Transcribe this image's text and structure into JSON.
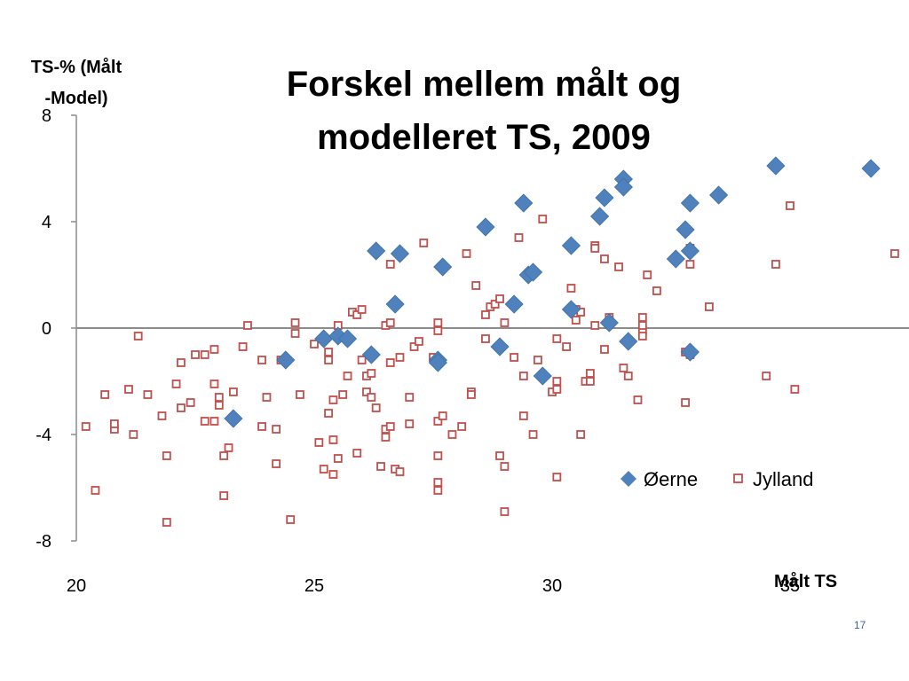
{
  "slide": {
    "page_number": "17"
  },
  "chart_data": {
    "type": "scatter",
    "title_lines": [
      "Forskel mellem målt og",
      "modelleret TS, 2009"
    ],
    "ylabel_lines": [
      "TS-% (Målt",
      "-Model)"
    ],
    "xlabel": "Målt TS",
    "xlim": [
      20,
      37.5
    ],
    "ylim": [
      -8,
      8
    ],
    "x_ticks": [
      20,
      25,
      30,
      35
    ],
    "y_ticks": [
      8,
      4,
      0,
      -4,
      -8
    ],
    "grid": false,
    "legend_position": "right",
    "series": [
      {
        "name": "Øerne",
        "color": "#4f81bd",
        "marker": "diamond",
        "points": [
          [
            23.3,
            -3.4
          ],
          [
            24.4,
            -1.2
          ],
          [
            25.2,
            -0.4
          ],
          [
            25.5,
            -0.3
          ],
          [
            25.7,
            -0.4
          ],
          [
            26.2,
            -1.0
          ],
          [
            26.3,
            2.9
          ],
          [
            26.7,
            0.9
          ],
          [
            26.8,
            2.8
          ],
          [
            27.6,
            -1.2
          ],
          [
            27.6,
            -1.3
          ],
          [
            27.7,
            2.3
          ],
          [
            28.6,
            3.8
          ],
          [
            28.9,
            -0.7
          ],
          [
            29.2,
            0.9
          ],
          [
            29.4,
            4.7
          ],
          [
            29.5,
            2.0
          ],
          [
            29.6,
            2.1
          ],
          [
            29.8,
            -1.8
          ],
          [
            30.4,
            3.1
          ],
          [
            30.4,
            0.7
          ],
          [
            31.0,
            4.2
          ],
          [
            31.1,
            4.9
          ],
          [
            31.2,
            0.2
          ],
          [
            31.5,
            5.6
          ],
          [
            31.5,
            5.3
          ],
          [
            31.6,
            -0.5
          ],
          [
            32.6,
            2.6
          ],
          [
            32.8,
            3.7
          ],
          [
            32.9,
            4.7
          ],
          [
            32.9,
            2.9
          ],
          [
            32.9,
            -0.9
          ],
          [
            33.5,
            5.0
          ],
          [
            34.7,
            6.1
          ],
          [
            36.7,
            6.0
          ]
        ]
      },
      {
        "name": "Jylland",
        "color": "#c0504d",
        "marker": "open-square",
        "points": [
          [
            20.2,
            -3.7
          ],
          [
            20.4,
            -6.1
          ],
          [
            20.6,
            -2.5
          ],
          [
            20.8,
            -3.8
          ],
          [
            20.8,
            -3.6
          ],
          [
            21.1,
            -2.3
          ],
          [
            21.2,
            -4.0
          ],
          [
            21.3,
            -0.3
          ],
          [
            21.5,
            -2.5
          ],
          [
            21.8,
            -3.3
          ],
          [
            21.9,
            -4.8
          ],
          [
            21.9,
            -7.3
          ],
          [
            22.1,
            -2.1
          ],
          [
            22.2,
            -1.3
          ],
          [
            22.2,
            -3.0
          ],
          [
            22.4,
            -2.8
          ],
          [
            22.5,
            -1.0
          ],
          [
            22.7,
            -1.0
          ],
          [
            22.7,
            -3.5
          ],
          [
            22.9,
            -0.8
          ],
          [
            22.9,
            -2.1
          ],
          [
            22.9,
            -3.5
          ],
          [
            23.0,
            -2.6
          ],
          [
            23.0,
            -2.9
          ],
          [
            23.1,
            -4.8
          ],
          [
            23.1,
            -6.3
          ],
          [
            23.2,
            -4.5
          ],
          [
            23.3,
            -2.4
          ],
          [
            23.5,
            -0.7
          ],
          [
            23.6,
            0.1
          ],
          [
            23.9,
            -3.7
          ],
          [
            23.9,
            -1.2
          ],
          [
            24.0,
            -2.6
          ],
          [
            24.2,
            -3.8
          ],
          [
            24.2,
            -5.1
          ],
          [
            24.3,
            -1.2
          ],
          [
            24.5,
            -7.2
          ],
          [
            24.6,
            0.2
          ],
          [
            24.6,
            -0.2
          ],
          [
            24.7,
            -2.5
          ],
          [
            25.0,
            -0.6
          ],
          [
            25.1,
            -4.3
          ],
          [
            25.2,
            -5.3
          ],
          [
            25.3,
            -3.2
          ],
          [
            25.3,
            -1.2
          ],
          [
            25.3,
            -0.9
          ],
          [
            25.4,
            -2.7
          ],
          [
            25.4,
            -4.2
          ],
          [
            25.4,
            -5.5
          ],
          [
            25.5,
            0.1
          ],
          [
            25.5,
            -4.9
          ],
          [
            25.6,
            -2.5
          ],
          [
            25.7,
            -1.8
          ],
          [
            25.8,
            0.6
          ],
          [
            25.9,
            0.5
          ],
          [
            25.9,
            -4.7
          ],
          [
            26.0,
            0.7
          ],
          [
            26.0,
            -1.2
          ],
          [
            26.1,
            -1.8
          ],
          [
            26.1,
            -2.4
          ],
          [
            26.2,
            -1.7
          ],
          [
            26.2,
            -2.6
          ],
          [
            26.3,
            -3.0
          ],
          [
            26.4,
            -5.2
          ],
          [
            26.5,
            -3.8
          ],
          [
            26.5,
            -4.1
          ],
          [
            26.5,
            0.1
          ],
          [
            26.6,
            0.2
          ],
          [
            26.6,
            -1.3
          ],
          [
            26.6,
            -3.7
          ],
          [
            26.6,
            2.4
          ],
          [
            26.7,
            -5.3
          ],
          [
            26.8,
            -5.4
          ],
          [
            26.8,
            -1.1
          ],
          [
            27.0,
            -2.6
          ],
          [
            27.0,
            -3.6
          ],
          [
            27.1,
            -0.7
          ],
          [
            27.2,
            -0.5
          ],
          [
            27.3,
            3.2
          ],
          [
            27.5,
            -1.1
          ],
          [
            27.6,
            -3.5
          ],
          [
            27.6,
            -4.8
          ],
          [
            27.6,
            -5.8
          ],
          [
            27.6,
            -6.1
          ],
          [
            27.6,
            0.2
          ],
          [
            27.6,
            -0.1
          ],
          [
            27.7,
            -3.3
          ],
          [
            27.9,
            -4.0
          ],
          [
            28.1,
            -3.7
          ],
          [
            28.2,
            2.8
          ],
          [
            28.3,
            -2.4
          ],
          [
            28.3,
            -2.5
          ],
          [
            28.4,
            1.6
          ],
          [
            28.6,
            0.5
          ],
          [
            28.6,
            -0.4
          ],
          [
            28.7,
            0.8
          ],
          [
            28.8,
            0.9
          ],
          [
            28.9,
            -4.8
          ],
          [
            28.9,
            1.1
          ],
          [
            29.0,
            0.2
          ],
          [
            29.0,
            -5.2
          ],
          [
            29.0,
            -6.9
          ],
          [
            29.2,
            -1.1
          ],
          [
            29.3,
            3.4
          ],
          [
            29.4,
            -1.8
          ],
          [
            29.4,
            -3.3
          ],
          [
            29.6,
            -4.0
          ],
          [
            29.7,
            -1.2
          ],
          [
            29.8,
            4.1
          ],
          [
            30.0,
            -2.4
          ],
          [
            30.1,
            -0.4
          ],
          [
            30.1,
            -2.3
          ],
          [
            30.1,
            -2.0
          ],
          [
            30.1,
            -5.6
          ],
          [
            30.3,
            -0.7
          ],
          [
            30.4,
            1.5
          ],
          [
            30.5,
            0.7
          ],
          [
            30.5,
            0.3
          ],
          [
            30.6,
            -4.0
          ],
          [
            30.6,
            0.6
          ],
          [
            30.7,
            -2.0
          ],
          [
            30.8,
            -1.7
          ],
          [
            30.8,
            -2.0
          ],
          [
            30.9,
            3.1
          ],
          [
            30.9,
            3.0
          ],
          [
            30.9,
            0.1
          ],
          [
            31.1,
            2.6
          ],
          [
            31.1,
            -0.8
          ],
          [
            31.2,
            0.4
          ],
          [
            31.4,
            2.3
          ],
          [
            31.5,
            -1.5
          ],
          [
            31.6,
            -1.8
          ],
          [
            31.8,
            -2.7
          ],
          [
            31.9,
            -0.1
          ],
          [
            31.9,
            0.1
          ],
          [
            31.9,
            -0.3
          ],
          [
            31.9,
            0.4
          ],
          [
            32.0,
            2.0
          ],
          [
            32.2,
            1.4
          ],
          [
            32.8,
            -0.9
          ],
          [
            32.8,
            -2.8
          ],
          [
            32.9,
            3.0
          ],
          [
            32.9,
            2.4
          ],
          [
            32.9,
            -1.0
          ],
          [
            33.3,
            0.8
          ],
          [
            34.5,
            -1.8
          ],
          [
            34.7,
            2.4
          ],
          [
            35.0,
            4.6
          ],
          [
            35.1,
            -2.3
          ],
          [
            37.2,
            2.8
          ]
        ]
      }
    ]
  }
}
